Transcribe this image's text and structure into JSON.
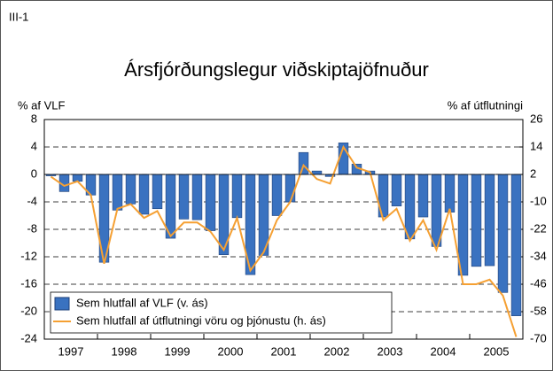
{
  "chart_data": {
    "type": "bar_line",
    "label": "III-1",
    "title": "Ársfjórðungslegur viðskiptajöfnuður",
    "y_label": "% af VLF",
    "y2_label": "% af útflutningi",
    "years": [
      "1997",
      "1998",
      "1999",
      "2000",
      "2001",
      "2002",
      "2003",
      "2004",
      "2005"
    ],
    "ylim": [
      -24,
      8
    ],
    "yticks": [
      -24,
      -20,
      -16,
      -12,
      -8,
      -4,
      0,
      4,
      8
    ],
    "y2lim": [
      -70,
      26
    ],
    "y2ticks": [
      -70,
      -58,
      -46,
      -34,
      -22,
      -10,
      2,
      14,
      26
    ],
    "grid": true,
    "legend": "bottom-left",
    "series": [
      {
        "name": "Sem hlutfall af VLF (v. ás)",
        "type": "bar",
        "color": "#3a72c0",
        "values": [
          -0.2,
          -2.5,
          -1.0,
          -3.0,
          -12.8,
          -5.2,
          -4.3,
          -5.8,
          -5.0,
          -9.3,
          -6.5,
          -6.6,
          -8.2,
          -11.7,
          -6.3,
          -14.6,
          -11.8,
          -6.0,
          -4.0,
          3.2,
          0.5,
          -0.3,
          4.6,
          1.5,
          0.5,
          -6.2,
          -4.6,
          -9.4,
          -6.2,
          -10.5,
          -5.5,
          -14.7,
          -13.4,
          -13.3,
          -17.2,
          -20.6
        ]
      },
      {
        "name": "Sem hlutfall af útflutningi vöru og þjónustu (h. ás)",
        "type": "line",
        "axis": "y2",
        "color": "#f5a033",
        "values": [
          1,
          -3,
          -1,
          -7,
          -37,
          -13,
          -11,
          -17,
          -14,
          -25,
          -19,
          -19,
          -23,
          -31,
          -17,
          -40,
          -32,
          -18,
          -10,
          6,
          0,
          -2,
          14,
          5,
          3,
          -18,
          -13,
          -27,
          -18,
          -31,
          -13,
          -46,
          -46,
          -44,
          -51,
          -69
        ]
      }
    ]
  }
}
